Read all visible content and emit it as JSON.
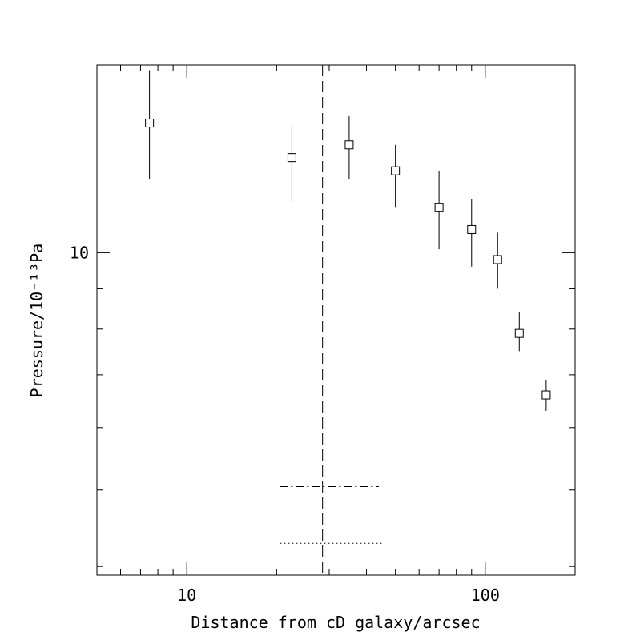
{
  "chart_data": {
    "type": "scatter",
    "title": "",
    "xlabel": "Distance from cD galaxy/arcsec",
    "ylabel": "Pressure/10⁻¹³Pa",
    "x_scale": "log",
    "y_scale": "log",
    "xlim": [
      5,
      200
    ],
    "ylim": [
      3.9,
      17.3
    ],
    "x_tick_labels": [
      {
        "value": 10,
        "label": "10"
      },
      {
        "value": 100,
        "label": "100"
      }
    ],
    "y_tick_labels": [
      {
        "value": 10,
        "label": "10"
      }
    ],
    "grid": false,
    "legend": "none",
    "series": [
      {
        "marker": "open-square",
        "points": [
          {
            "x": 7.5,
            "y": 14.6,
            "y_low": 12.4,
            "y_high": 17.0
          },
          {
            "x": 22.5,
            "y": 13.2,
            "y_low": 11.6,
            "y_high": 14.5
          },
          {
            "x": 35.0,
            "y": 13.7,
            "y_low": 12.4,
            "y_high": 14.9
          },
          {
            "x": 50.0,
            "y": 12.7,
            "y_low": 11.4,
            "y_high": 13.7
          },
          {
            "x": 70.0,
            "y": 11.4,
            "y_low": 10.1,
            "y_high": 12.7
          },
          {
            "x": 90.0,
            "y": 10.7,
            "y_low": 9.6,
            "y_high": 11.7
          },
          {
            "x": 110.0,
            "y": 9.8,
            "y_low": 9.0,
            "y_high": 10.6
          },
          {
            "x": 130.0,
            "y": 7.9,
            "y_low": 7.5,
            "y_high": 8.4
          },
          {
            "x": 160.0,
            "y": 6.6,
            "y_low": 6.3,
            "y_high": 6.9
          }
        ]
      }
    ],
    "annotations": [
      {
        "kind": "vertical-line",
        "style": "dashed",
        "x": 28.5
      },
      {
        "kind": "horizontal-bar",
        "style": "dash-dot",
        "x_from": 20.5,
        "x_to": 44.0,
        "y": 5.05
      },
      {
        "kind": "horizontal-bar",
        "style": "dotted",
        "x_from": 20.5,
        "x_to": 45.0,
        "y": 4.28
      }
    ]
  }
}
